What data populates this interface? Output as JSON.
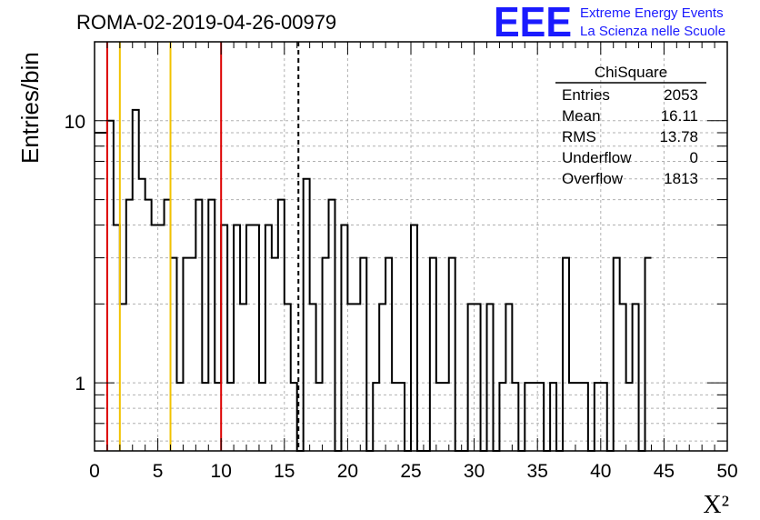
{
  "logo": {
    "mark": "EEE",
    "line1": "Extreme Energy Events",
    "line2": "La Scienza nelle Scuole",
    "color": "#1a1aff"
  },
  "chart_data": {
    "type": "histogram",
    "title": "ROMA-02-2019-04-26-00979",
    "xlabel": "X²",
    "ylabel": "Entries/bin",
    "xlim": [
      0,
      50
    ],
    "ylim": [
      0.55,
      20
    ],
    "yscale": "log",
    "grid": true,
    "bin_width": 0.5,
    "x_ticks": [
      0,
      5,
      10,
      15,
      20,
      25,
      30,
      35,
      40,
      45,
      50
    ],
    "y_ticks": [
      1,
      10
    ],
    "values": [
      9,
      9,
      10,
      4,
      2,
      5,
      11,
      6,
      5,
      4,
      4,
      5,
      3,
      1,
      3,
      3,
      5,
      1,
      5,
      1,
      4,
      1,
      4,
      2,
      4,
      4,
      1,
      4,
      3,
      5,
      2,
      1,
      0,
      6,
      2,
      1,
      3,
      5,
      0,
      4,
      2,
      2,
      3,
      0,
      1,
      2,
      3,
      1,
      1,
      0,
      4,
      0,
      0,
      3,
      1,
      1,
      3,
      0,
      0,
      2,
      2,
      0,
      2,
      0,
      1,
      2,
      1,
      0,
      1,
      1,
      1,
      0,
      1,
      0,
      3,
      1,
      1,
      1,
      0,
      1,
      1,
      0,
      3,
      2,
      1,
      2,
      0,
      3
    ],
    "vertical_lines": [
      {
        "x": 1,
        "color": "#dd0000",
        "style": "solid"
      },
      {
        "x": 2,
        "color": "#f2c200",
        "style": "solid"
      },
      {
        "x": 6,
        "color": "#f2c200",
        "style": "solid"
      },
      {
        "x": 10,
        "color": "#dd0000",
        "style": "solid"
      },
      {
        "x": 16.11,
        "color": "#000000",
        "style": "dashed"
      }
    ],
    "stats_box": {
      "title": "ChiSquare",
      "rows": [
        {
          "label": "Entries",
          "value": "2053"
        },
        {
          "label": "Mean",
          "value": "16.11"
        },
        {
          "label": "RMS",
          "value": "13.78"
        },
        {
          "label": "Underflow",
          "value": "0"
        },
        {
          "label": "Overflow",
          "value": "1813"
        }
      ]
    }
  }
}
